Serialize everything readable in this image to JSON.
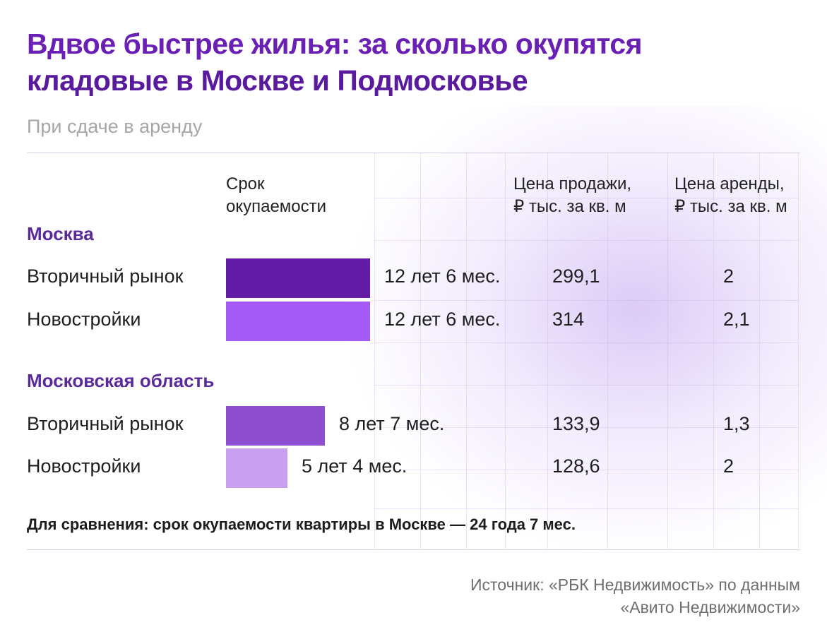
{
  "title_line1": "Вдвое быстрее жилья: за сколько окупятся",
  "title_line2": "кладовые в Москве и Подмосковье",
  "subtitle": "При сдаче в аренду",
  "columns": {
    "payback_l1": "Срок",
    "payback_l2": "окупаемости",
    "sale_l1": "Цена продажи,",
    "sale_l2": "₽ тыс. за кв. м",
    "rent_l1": "Цена аренды,",
    "rent_l2": "₽ тыс. за кв. м"
  },
  "sections": [
    {
      "name": "Москва",
      "rows": [
        {
          "label": "Вторичный рынок",
          "payback_text": "12 лет 6 мес.",
          "payback_months": 150,
          "sale": "299,1",
          "rent": "2",
          "color": "#631ca6"
        },
        {
          "label": "Новостройки",
          "payback_text": "12 лет 6 мес.",
          "payback_months": 150,
          "sale": "314",
          "rent": "2,1",
          "color": "#a45af5"
        }
      ]
    },
    {
      "name": "Московская область",
      "rows": [
        {
          "label": "Вторичный рынок",
          "payback_text": "8 лет 7 мес.",
          "payback_months": 103,
          "sale": "133,9",
          "rent": "1,3",
          "color": "#8d4ed0"
        },
        {
          "label": "Новостройки",
          "payback_text": "5 лет 4 мес.",
          "payback_months": 64,
          "sale": "128,6",
          "rent": "2",
          "color": "#c9a0ef"
        }
      ]
    }
  ],
  "note": "Для сравнения: срок окупаемости квартиры в Москве — 24 года 7 мес.",
  "source_l1": "Источник: «РБК Недвижимость» по данным",
  "source_l2": "«Авито Недвижимости»",
  "chart_data": {
    "type": "bar",
    "title": "Вдвое быстрее жилья: за сколько окупятся кладовые в Москве и Подмосковье",
    "subtitle": "При сдаче в аренду",
    "categories": [
      "Москва — Вторичный рынок",
      "Москва — Новостройки",
      "Московская область — Вторичный рынок",
      "Московская область — Новостройки"
    ],
    "series": [
      {
        "name": "Срок окупаемости",
        "values": [
          150,
          150,
          103,
          64
        ],
        "labels": [
          "12 лет 6 мес.",
          "12 лет 6 мес.",
          "8 лет 7 мес.",
          "5 лет 4 мес."
        ]
      },
      {
        "name": "Цена продажи, ₽ тыс. за кв. м",
        "values": [
          299.1,
          314,
          133.9,
          128.6
        ]
      },
      {
        "name": "Цена аренды, ₽ тыс. за кв. м",
        "values": [
          2,
          2.1,
          1.3,
          2
        ]
      }
    ]
  }
}
